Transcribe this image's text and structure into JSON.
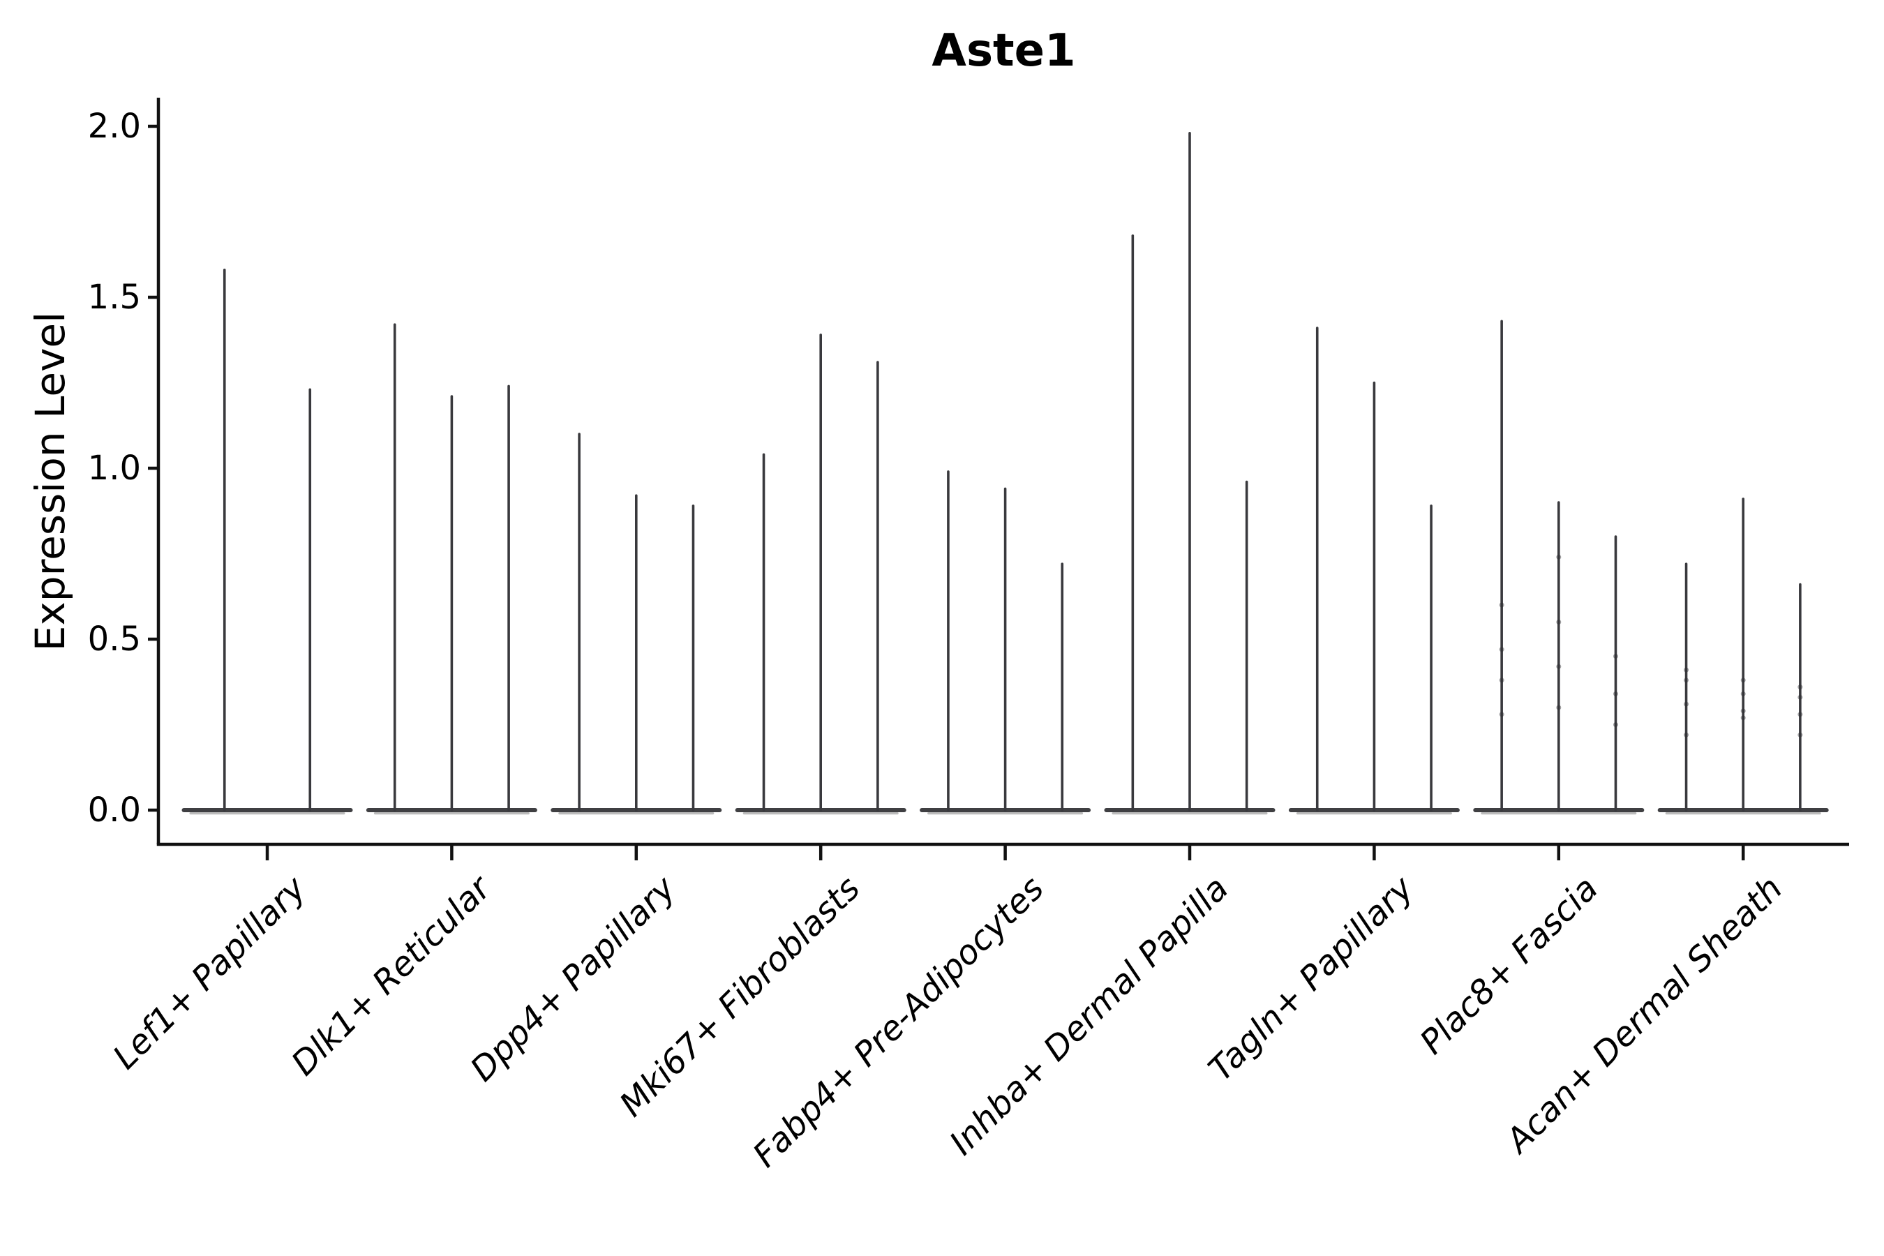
{
  "title": "Aste1",
  "chart_data": {
    "type": "violin",
    "title": "Aste1",
    "xlabel": "",
    "ylabel": "Expression Level",
    "ylim": [
      -0.1,
      2.08
    ],
    "yticks": [
      0.0,
      0.5,
      1.0,
      1.5,
      2.0
    ],
    "ytick_labels": [
      "0.0",
      "0.5",
      "1.0",
      "1.5",
      "2.0"
    ],
    "grid": false,
    "legend_position": "none",
    "spine_color": "#111111",
    "violin_color": "#39393d",
    "violin_base_color": "#3f3f42",
    "violin_base_shade_color": "#909090",
    "background_color": "#ffffff",
    "categories": [
      {
        "label": "Lef1+ Papillary",
        "violins": [
          {
            "max": 1.58,
            "dots": []
          },
          {
            "max": 1.23,
            "dots": []
          }
        ]
      },
      {
        "label": "Dlk1+ Reticular",
        "violins": [
          {
            "max": 1.42,
            "dots": []
          },
          {
            "max": 1.21,
            "dots": []
          },
          {
            "max": 1.24,
            "dots": []
          }
        ]
      },
      {
        "label": "Dpp4+ Papillary",
        "violins": [
          {
            "max": 1.1,
            "dots": []
          },
          {
            "max": 0.92,
            "dots": []
          },
          {
            "max": 0.89,
            "dots": []
          }
        ]
      },
      {
        "label": "Mki67+ Fibroblasts",
        "violins": [
          {
            "max": 1.04,
            "dots": []
          },
          {
            "max": 1.39,
            "dots": []
          },
          {
            "max": 1.31,
            "dots": []
          }
        ]
      },
      {
        "label": "Fabp4+ Pre-Adipocytes",
        "violins": [
          {
            "max": 0.99,
            "dots": []
          },
          {
            "max": 0.94,
            "dots": []
          },
          {
            "max": 0.72,
            "dots": []
          }
        ]
      },
      {
        "label": "Inhba+ Dermal Papilla",
        "violins": [
          {
            "max": 1.68,
            "dots": []
          },
          {
            "max": 1.98,
            "dots": []
          },
          {
            "max": 0.96,
            "dots": []
          }
        ]
      },
      {
        "label": "Tagln+ Papillary",
        "violins": [
          {
            "max": 1.41,
            "dots": []
          },
          {
            "max": 1.25,
            "dots": []
          },
          {
            "max": 0.89,
            "dots": []
          }
        ]
      },
      {
        "label": "Plac8+ Fascia",
        "violins": [
          {
            "max": 1.43,
            "dots": [
              0.6,
              0.47,
              0.38,
              0.28
            ]
          },
          {
            "max": 0.9,
            "dots": [
              0.74,
              0.55,
              0.42,
              0.3
            ]
          },
          {
            "max": 0.8,
            "dots": [
              0.45,
              0.34,
              0.25
            ]
          }
        ]
      },
      {
        "label": "Acan+ Dermal Sheath",
        "violins": [
          {
            "max": 0.72,
            "dots": [
              0.41,
              0.38,
              0.31,
              0.22
            ]
          },
          {
            "max": 0.91,
            "dots": [
              0.38,
              0.34,
              0.29,
              0.27
            ]
          },
          {
            "max": 0.66,
            "dots": [
              0.36,
              0.33,
              0.28,
              0.22
            ]
          }
        ]
      }
    ]
  }
}
